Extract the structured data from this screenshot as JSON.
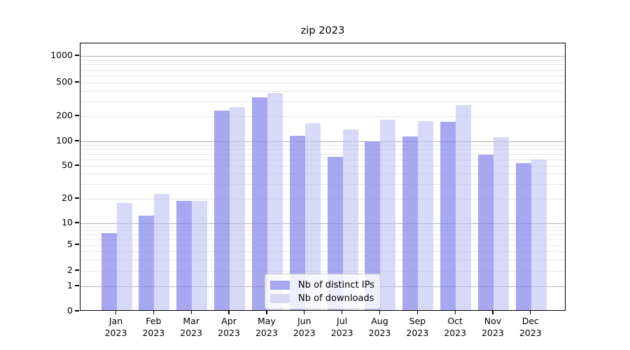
{
  "title": "zip 2023",
  "chart_data": {
    "type": "bar",
    "title": "zip 2023",
    "categories": [
      "Jan",
      "Feb",
      "Mar",
      "Apr",
      "May",
      "Jun",
      "Jul",
      "Aug",
      "Sep",
      "Oct",
      "Nov",
      "Dec"
    ],
    "year": "2023",
    "series": [
      {
        "key": "distinct-ips",
        "name": "Nb of distinct IPs",
        "legend_color": "#a8a8f0",
        "bar_fill": "rgba(131,131,234,0.7)",
        "values": [
          7,
          12,
          18,
          225,
          320,
          112,
          62,
          96,
          110,
          165,
          66,
          52
        ]
      },
      {
        "key": "downloads",
        "name": "Nb of downloads",
        "legend_color": "#d8d8f6",
        "bar_fill": "rgba(190,190,243,0.6)",
        "values": [
          17,
          22,
          18,
          245,
          360,
          160,
          133,
          175,
          168,
          260,
          108,
          57
        ]
      }
    ],
    "yscale": "symlog",
    "y_ticks": [
      0,
      1,
      2,
      5,
      10,
      20,
      50,
      100,
      200,
      500,
      1000
    ],
    "ylim": [
      0,
      1410
    ],
    "xlabel": "",
    "ylabel": "",
    "grid": true,
    "legend_position": "lower center"
  },
  "colors": {
    "background": "#ffffff",
    "grid_major": "#b3b3b3",
    "grid_minor": "#e7e7e7",
    "axis": "#000000"
  }
}
